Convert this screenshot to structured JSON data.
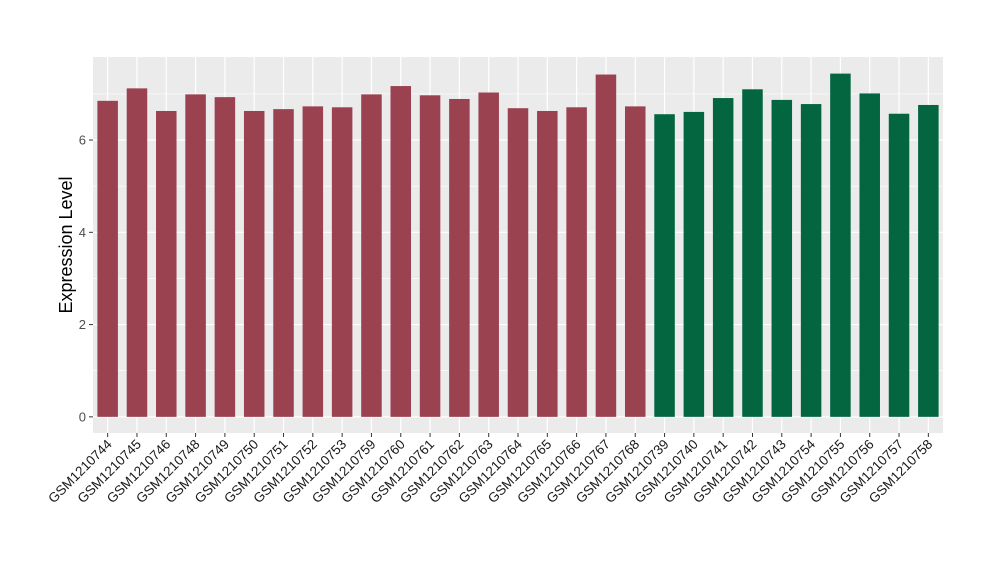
{
  "chart_data": {
    "type": "bar",
    "title": "",
    "xlabel": "",
    "ylabel": "Expression Level",
    "ylim": [
      -0.35,
      7.8
    ],
    "yticks": [
      0,
      2,
      4,
      6
    ],
    "grid": true,
    "legend": "none",
    "categories": [
      "GSM1210744",
      "GSM1210745",
      "GSM1210746",
      "GSM1210748",
      "GSM1210749",
      "GSM1210750",
      "GSM1210751",
      "GSM1210752",
      "GSM1210753",
      "GSM1210759",
      "GSM1210760",
      "GSM1210761",
      "GSM1210762",
      "GSM1210763",
      "GSM1210764",
      "GSM1210765",
      "GSM1210766",
      "GSM1210767",
      "GSM1210768",
      "GSM1210739",
      "GSM1210740",
      "GSM1210741",
      "GSM1210742",
      "GSM1210743",
      "GSM1210754",
      "GSM1210755",
      "GSM1210756",
      "GSM1210757",
      "GSM1210758"
    ],
    "values": [
      6.85,
      7.12,
      6.63,
      6.99,
      6.93,
      6.63,
      6.67,
      6.73,
      6.71,
      6.99,
      7.17,
      6.97,
      6.89,
      7.03,
      6.69,
      6.63,
      6.71,
      7.42,
      6.73,
      6.56,
      6.61,
      6.91,
      7.1,
      6.87,
      6.78,
      7.44,
      7.01,
      6.57,
      6.76
    ],
    "groups": [
      "A",
      "A",
      "A",
      "A",
      "A",
      "A",
      "A",
      "A",
      "A",
      "A",
      "A",
      "A",
      "A",
      "A",
      "A",
      "A",
      "A",
      "A",
      "A",
      "B",
      "B",
      "B",
      "B",
      "B",
      "B",
      "B",
      "B",
      "B",
      "B"
    ],
    "group_colors": {
      "A": "#9a4250",
      "B": "#046641"
    },
    "panel_background": "#ebebeb",
    "grid_color": "#ffffff"
  }
}
